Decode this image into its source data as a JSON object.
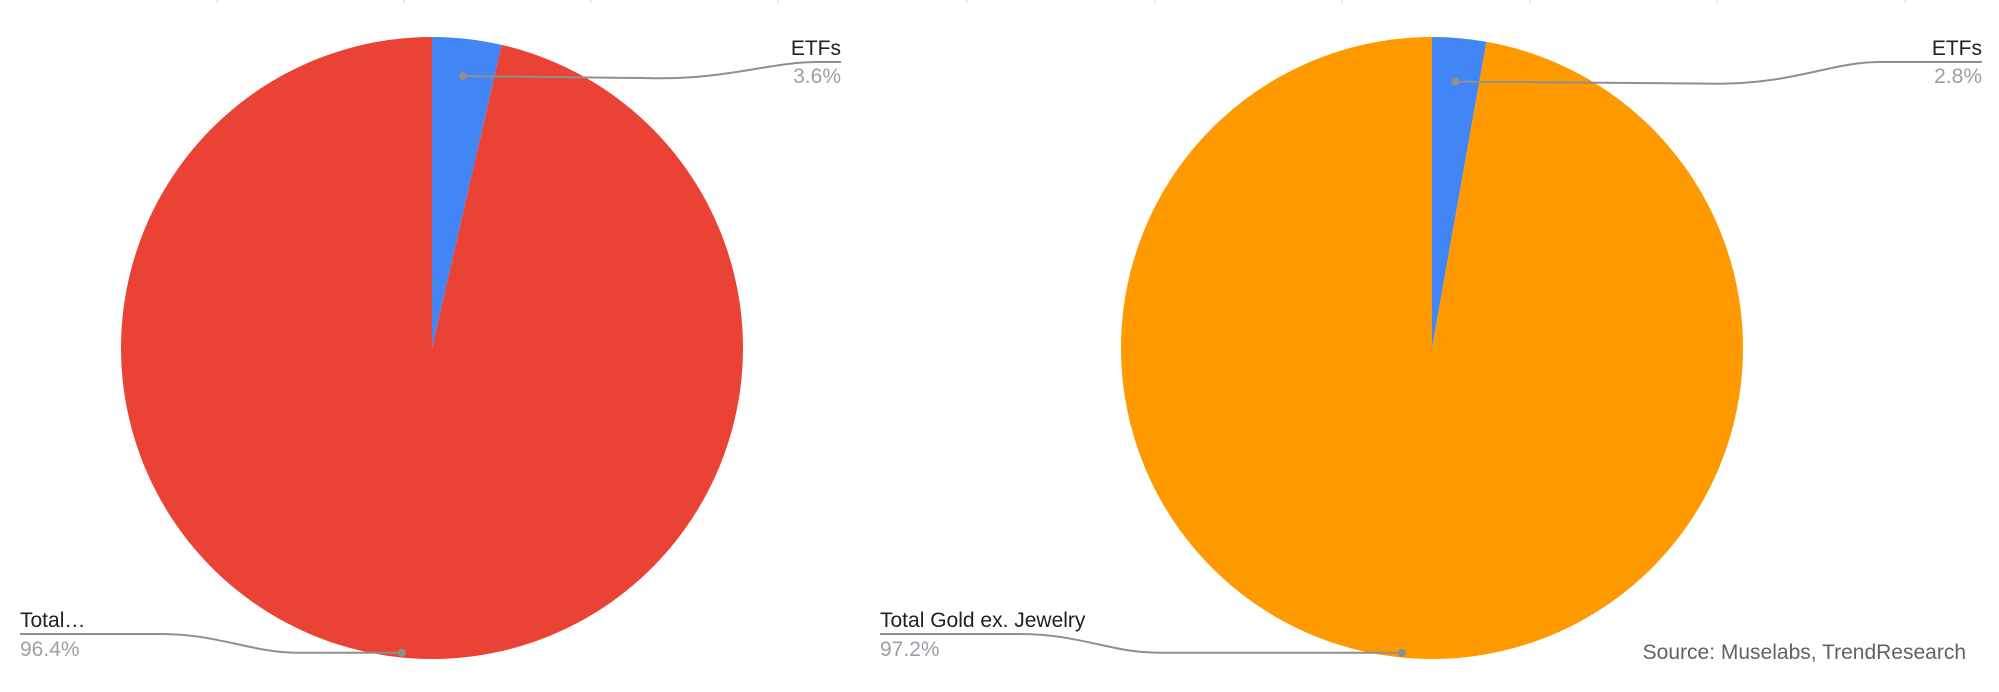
{
  "chart_data": [
    {
      "type": "pie",
      "start_angle_deg": 0,
      "direction": "clockwise",
      "slices": [
        {
          "label": "ETFs",
          "display_label": "ETFs",
          "value": 3.6,
          "value_label": "3.6%",
          "color": "#4285f4"
        },
        {
          "label": "Total…",
          "display_label": "Total…",
          "value": 96.4,
          "value_label": "96.4%",
          "color": "#ea4335"
        }
      ]
    },
    {
      "type": "pie",
      "start_angle_deg": 0,
      "direction": "clockwise",
      "slices": [
        {
          "label": "ETFs",
          "display_label": "ETFs",
          "value": 2.8,
          "value_label": "2.8%",
          "color": "#4285f4"
        },
        {
          "label": "Total Gold ex. Jewelry",
          "display_label": "Total Gold ex. Jewelry",
          "value": 97.2,
          "value_label": "97.2%",
          "color": "#ff9900"
        }
      ]
    }
  ],
  "source": "Source: Muselabs, TrendResearch"
}
